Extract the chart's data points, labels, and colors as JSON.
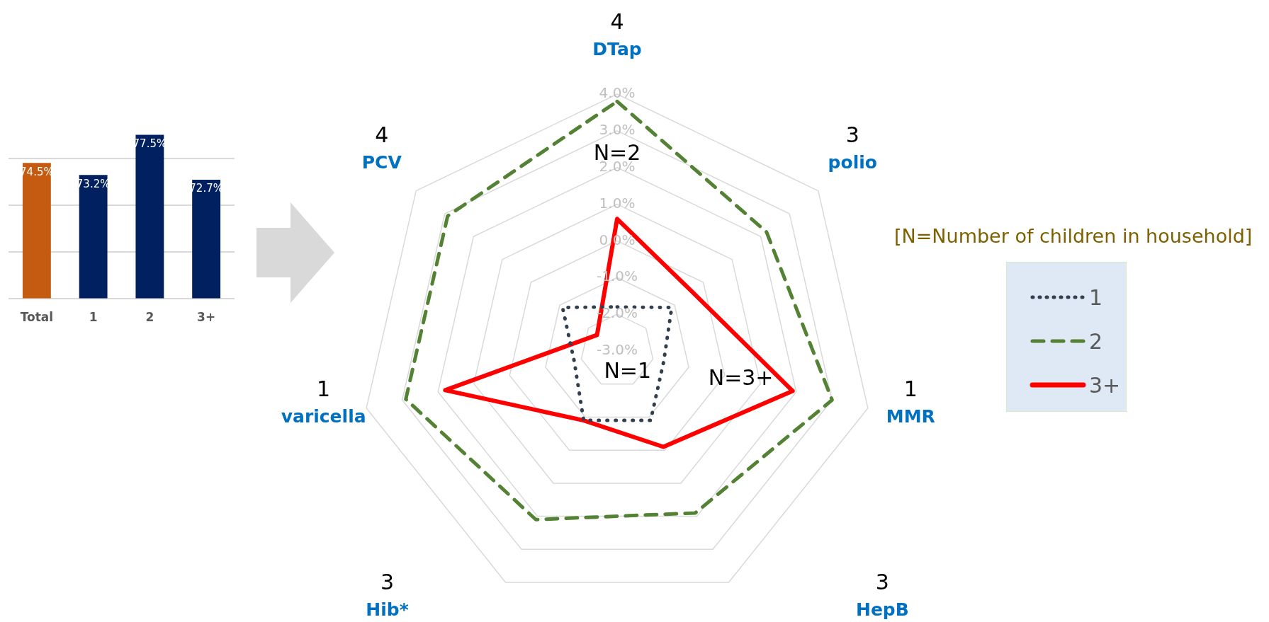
{
  "chart_data": [
    {
      "type": "bar",
      "categories": [
        "Total",
        "1",
        "2",
        "3+"
      ],
      "values": [
        74.5,
        73.2,
        77.5,
        72.7
      ],
      "colors": [
        "#c55a11",
        "#002060",
        "#002060",
        "#002060"
      ],
      "yticks": [
        {
          "value": 60,
          "label": null
        },
        {
          "value": 65,
          "label": null
        },
        {
          "value": 70,
          "label": null
        },
        {
          "value": 75,
          "label": null
        }
      ],
      "grid": "y",
      "tick_labels": "x",
      "data_labels": true,
      "value_labels": [
        "74.5%",
        "73.2%",
        "77.5%",
        "72.7%"
      ],
      "legend": false
    },
    {
      "type": "radar",
      "categories": [
        "DTap",
        "polio",
        "MMR",
        "HepB",
        "Hib*",
        "varicella",
        "PCV"
      ],
      "series": [
        {
          "name": "1",
          "color": "#323f4f",
          "line_style": "dotted",
          "values": [
            -1.8,
            -1.1,
            -1.7,
            -0.9,
            -0.9,
            -1.8,
            -1.1
          ]
        },
        {
          "name": "2",
          "color": "#548235",
          "line_style": "dashed",
          "values": [
            3.8,
            2.2,
            3.0,
            1.9,
            2.1,
            2.9,
            2.9
          ]
        },
        {
          "name": "3+",
          "color": "#ff0000",
          "line_style": "solid",
          "values": [
            0.6,
            -0.4,
            1.9,
            -0.1,
            -0.9,
            1.8,
            -2.3
          ]
        }
      ],
      "ylim": [
        -3,
        4
      ],
      "yticks": [
        {
          "value": -3,
          "label": "-3.0%"
        },
        {
          "value": -2,
          "label": "-2.0%"
        },
        {
          "value": -1,
          "label": "-1.0%"
        },
        {
          "value": 0,
          "label": "0.0%"
        },
        {
          "value": 1,
          "label": "1.0%"
        },
        {
          "value": 2,
          "label": "2.0%"
        },
        {
          "value": 3,
          "label": "3.0%"
        },
        {
          "value": 4,
          "label": "4.0%"
        }
      ],
      "grid": true,
      "marker": "none",
      "legend": "right",
      "legend_title": "[N=Number of children in household]",
      "annotations": [
        {
          "text": "4",
          "x": "DTap"
        },
        {
          "text": "3",
          "x": "polio"
        },
        {
          "text": "1",
          "x": "MMR"
        },
        {
          "text": "3",
          "x": "HepB"
        },
        {
          "text": "3",
          "x": "Hib*"
        },
        {
          "text": "1",
          "x": "varicella"
        },
        {
          "text": "4",
          "x": "PCV"
        },
        "N=1",
        "N=2",
        "N=3+"
      ]
    }
  ]
}
